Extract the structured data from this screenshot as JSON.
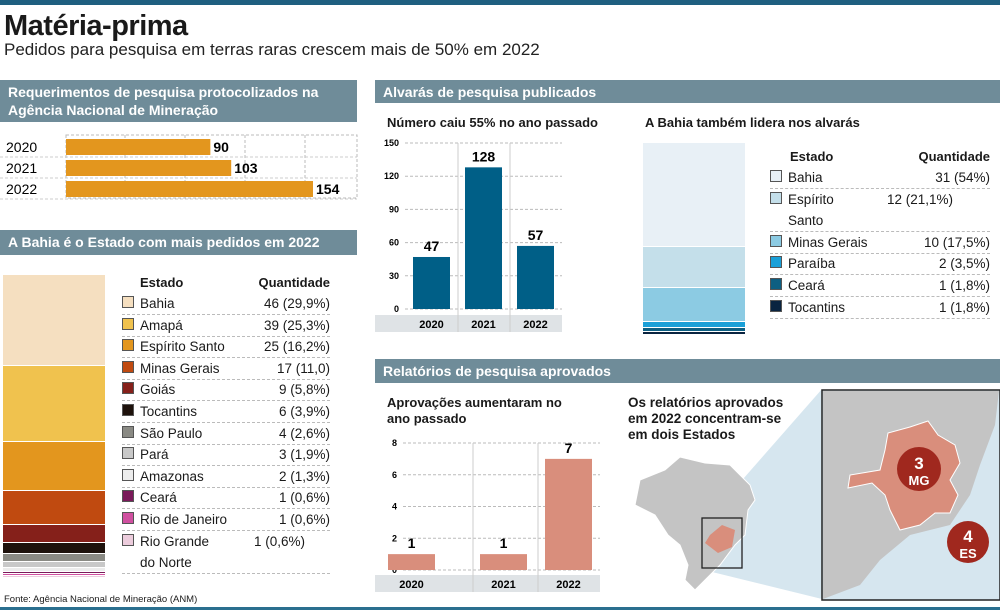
{
  "title": "Matéria-prima",
  "subtitle": "Pedidos para pesquisa em terras raras crescem mais de 50% em 2022",
  "source": "Fonte: Agência Nacional de Mineração (ANM)",
  "sections": {
    "requerimentos": "Requerimentos de pesquisa protocolizados na Agência Nacional de Mineração",
    "bahia_pedidos": "A Bahia é o Estado com mais pedidos em 2022",
    "alvaras": "Alvarás de pesquisa publicados",
    "relatorios": "Relatórios de pesquisa aprovados"
  },
  "legend_headers": {
    "estado": "Estado",
    "quantidade": "Quantidade"
  },
  "map": {
    "title": "Os relatórios aprovados em 2022 concentram-se em dois Estados",
    "markers": [
      {
        "value": "3",
        "state": "MG"
      },
      {
        "value": "4",
        "state": "ES"
      }
    ],
    "highlight_color": "#d98e7c",
    "marker_color": "#a0281e"
  },
  "chart_data": [
    {
      "type": "bar",
      "orientation": "horizontal",
      "categories": [
        "2020",
        "2021",
        "2022"
      ],
      "values": [
        90,
        103,
        154
      ],
      "color": "#e3961e"
    },
    {
      "type": "bar",
      "stacked": true,
      "title": "",
      "categories": [
        "Bahia",
        "Amapá",
        "Espírito Santo",
        "Minas Gerais",
        "Goiás",
        "Tocantins",
        "São Paulo",
        "Pará",
        "Amazonas",
        "Ceará",
        "Rio de Janeiro",
        "Rio Grande do Norte"
      ],
      "values": [
        46,
        39,
        25,
        17,
        9,
        6,
        4,
        3,
        2,
        1,
        1,
        1
      ],
      "labels": [
        "46 (29,9%)",
        "39 (25,3%)",
        "25 (16,2%)",
        "17 (11,0)",
        "9 (5,8%)",
        "6 (3,9%)",
        "4 (2,6%)",
        "3 (1,9%)",
        "2 (1,3%)",
        "1 (0,6%)",
        "1 (0,6%)",
        "1 (0,6%)"
      ],
      "colors": [
        "#f5dfc0",
        "#f0c24e",
        "#e3961e",
        "#c04a10",
        "#85201a",
        "#1e120c",
        "#8a8a84",
        "#c8c8c8",
        "#ececec",
        "#7a1a5a",
        "#d050a0",
        "#ecccdc"
      ]
    },
    {
      "type": "bar",
      "title": "Número caiu 55% no ano passado",
      "categories": [
        "2020",
        "2021",
        "2022"
      ],
      "values": [
        47,
        128,
        57
      ],
      "ylim": [
        0,
        150
      ],
      "yticks": [
        0,
        30,
        60,
        90,
        120,
        150
      ],
      "color": "#005f87",
      "grid": true
    },
    {
      "type": "bar",
      "stacked": true,
      "title": "A Bahia também lidera nos alvarás",
      "categories": [
        "Bahia",
        "Espírito Santo",
        "Minas Gerais",
        "Paraíba",
        "Ceará",
        "Tocantins"
      ],
      "values": [
        31,
        12,
        10,
        2,
        1,
        1
      ],
      "labels": [
        "31 (54%)",
        "12 (21,1%)",
        "10 (17,5%)",
        "2 (3,5%)",
        "1 (1,8%)",
        "1 (1,8%)"
      ],
      "colors": [
        "#e8f0f6",
        "#c4dfea",
        "#8ccbe3",
        "#1aa0d8",
        "#0e5f82",
        "#0a2440"
      ]
    },
    {
      "type": "bar",
      "title": "Aprovações aumentaram no ano passado",
      "categories": [
        "2020",
        "2021",
        "2022"
      ],
      "values": [
        1,
        1,
        7
      ],
      "ylim": [
        0,
        8
      ],
      "yticks": [
        0,
        2,
        4,
        6,
        8
      ],
      "color": "#d98e7c",
      "grid": true
    }
  ]
}
